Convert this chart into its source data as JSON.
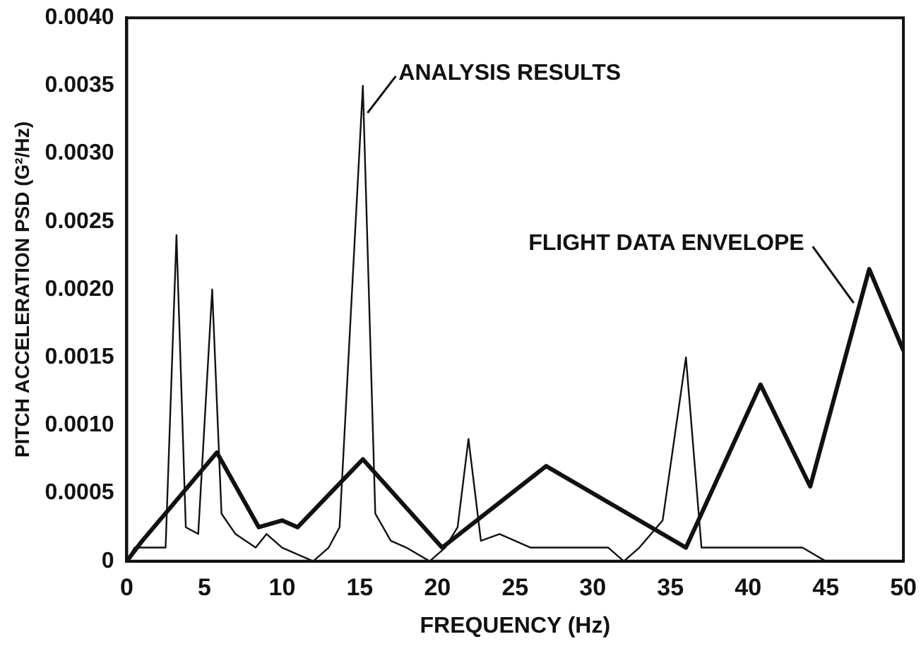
{
  "chart_data": {
    "type": "line",
    "xlabel": "FREQUENCY (Hz)",
    "ylabel": "PITCH ACCELERATION PSD (G²/Hz)",
    "xlim": [
      0,
      50
    ],
    "xticks": [
      0,
      5,
      10,
      15,
      20,
      25,
      30,
      35,
      40,
      45,
      50
    ],
    "ylim": [
      0,
      0.004
    ],
    "yticks": [
      {
        "value": 0,
        "label": "0"
      },
      {
        "value": 0.0005,
        "label": "0.0005"
      },
      {
        "value": 0.001,
        "label": "0.0010"
      },
      {
        "value": 0.0015,
        "label": "0.0015"
      },
      {
        "value": 0.002,
        "label": "0.0020"
      },
      {
        "value": 0.0025,
        "label": "0.0025"
      },
      {
        "value": 0.003,
        "label": "0.0030"
      },
      {
        "value": 0.0035,
        "label": "0.0035"
      },
      {
        "value": 0.004,
        "label": "0.0040"
      }
    ],
    "grid": false,
    "legend": false,
    "marker": "none",
    "line_style": "solid",
    "series": [
      {
        "color": "#111111",
        "x": [
          0,
          0.5,
          2.5,
          3.2,
          3.8,
          4.6,
          5.5,
          6.1,
          7,
          8.3,
          9,
          10,
          12,
          13,
          13.7,
          15.2,
          16,
          17,
          18,
          19.5,
          20.5,
          21.3,
          22,
          22.8,
          24,
          26,
          28,
          31,
          32,
          33,
          34.5,
          36,
          37,
          38,
          41,
          43.5,
          45,
          49.5,
          50
        ],
        "values": [
          0,
          0.0001,
          0.0001,
          0.0024,
          0.00025,
          0.0002,
          0.002,
          0.00035,
          0.0002,
          0.0001,
          0.0002,
          0.0001,
          0,
          0.0001,
          0.00025,
          0.0035,
          0.00035,
          0.00015,
          0.0001,
          0,
          0.0001,
          0.00025,
          0.0009,
          0.00015,
          0.0002,
          0.0001,
          0.0001,
          0.0001,
          0,
          0.0001,
          0.0003,
          0.0015,
          0.0001,
          0.0001,
          0.0001,
          0.0001,
          0,
          0,
          0
        ]
      },
      {
        "color": "#111111",
        "x": [
          0,
          1,
          5.8,
          8.5,
          10,
          11,
          15.2,
          20.3,
          27,
          36,
          40.8,
          44,
          47.8,
          50
        ],
        "values": [
          0,
          0.00015,
          0.0008,
          0.00025,
          0.0003,
          0.00025,
          0.00075,
          0.0001,
          0.0007,
          0.0001,
          0.0013,
          0.00055,
          0.00215,
          0.00155
        ]
      }
    ],
    "annotations": [
      {
        "text": "ANALYSIS RESULTS",
        "x": 15.5,
        "y": 0.0033
      },
      {
        "text": "FLIGHT DATA ENVELOPE",
        "x": 46.8,
        "y": 0.0019
      }
    ]
  }
}
